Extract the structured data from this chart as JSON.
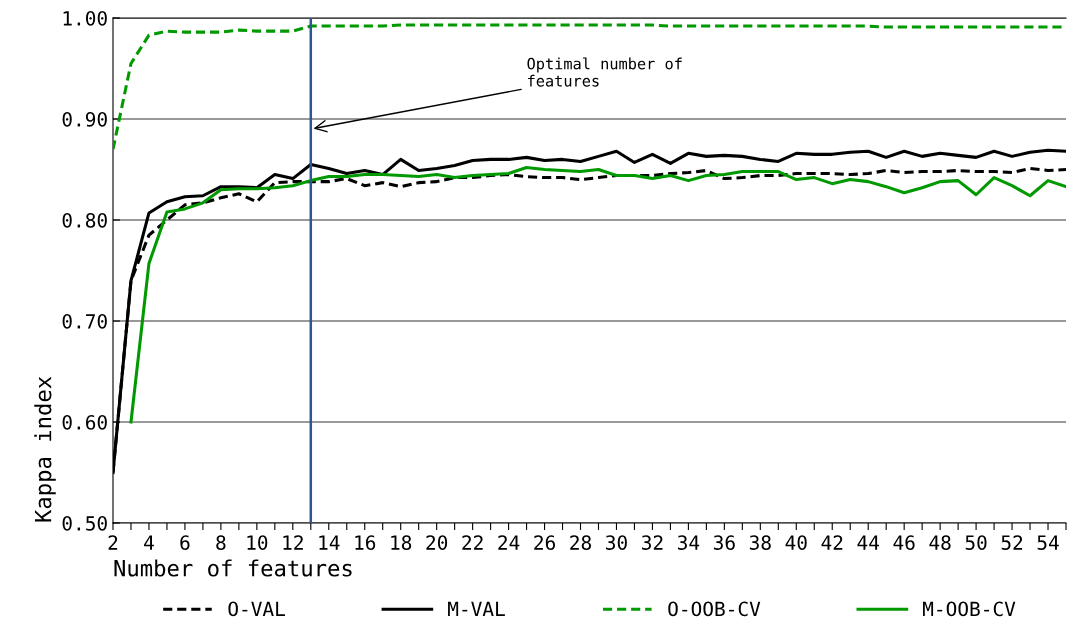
{
  "chart_data": {
    "type": "line",
    "xlabel": "Number of features",
    "ylabel": "Kappa index",
    "x": [
      2,
      3,
      4,
      5,
      6,
      7,
      8,
      9,
      10,
      11,
      12,
      13,
      14,
      15,
      16,
      17,
      18,
      19,
      20,
      21,
      22,
      23,
      24,
      25,
      26,
      27,
      28,
      29,
      30,
      31,
      32,
      33,
      34,
      35,
      36,
      37,
      38,
      39,
      40,
      41,
      42,
      43,
      44,
      45,
      46,
      47,
      48,
      49,
      50,
      51,
      52,
      53,
      54,
      55
    ],
    "series": [
      {
        "name": "O-VAL",
        "color": "#000000",
        "line_style": "dashed",
        "values": [
          0.55,
          0.74,
          0.785,
          0.8,
          0.815,
          0.817,
          0.822,
          0.826,
          0.818,
          0.837,
          0.838,
          0.838,
          0.838,
          0.841,
          0.834,
          0.837,
          0.833,
          0.837,
          0.838,
          0.842,
          0.842,
          0.844,
          0.845,
          0.843,
          0.842,
          0.842,
          0.84,
          0.842,
          0.844,
          0.844,
          0.844,
          0.846,
          0.847,
          0.849,
          0.841,
          0.842,
          0.844,
          0.844,
          0.846,
          0.846,
          0.846,
          0.845,
          0.846,
          0.849,
          0.847,
          0.848,
          0.848,
          0.849,
          0.848,
          0.848,
          0.847,
          0.851,
          0.849,
          0.85
        ]
      },
      {
        "name": "M-VAL",
        "color": "#000000",
        "line_style": "solid",
        "values": [
          0.55,
          0.74,
          0.807,
          0.818,
          0.823,
          0.824,
          0.833,
          0.833,
          0.832,
          0.845,
          0.841,
          0.855,
          0.851,
          0.846,
          0.849,
          0.845,
          0.86,
          0.849,
          0.851,
          0.854,
          0.859,
          0.86,
          0.86,
          0.862,
          0.859,
          0.86,
          0.858,
          0.863,
          0.868,
          0.857,
          0.865,
          0.856,
          0.866,
          0.863,
          0.864,
          0.863,
          0.86,
          0.858,
          0.866,
          0.865,
          0.865,
          0.867,
          0.868,
          0.862,
          0.868,
          0.863,
          0.866,
          0.864,
          0.862,
          0.868,
          0.863,
          0.867,
          0.869,
          0.868
        ]
      },
      {
        "name": "O-OOB-CV",
        "color": "#009900",
        "line_style": "dashed",
        "values": [
          0.87,
          0.955,
          0.983,
          0.987,
          0.986,
          0.986,
          0.986,
          0.988,
          0.987,
          0.987,
          0.987,
          0.992,
          0.992,
          0.992,
          0.992,
          0.992,
          0.993,
          0.993,
          0.993,
          0.993,
          0.993,
          0.993,
          0.993,
          0.993,
          0.993,
          0.993,
          0.993,
          0.993,
          0.993,
          0.993,
          0.993,
          0.992,
          0.992,
          0.992,
          0.992,
          0.992,
          0.992,
          0.992,
          0.992,
          0.992,
          0.992,
          0.992,
          0.992,
          0.991,
          0.991,
          0.991,
          0.991,
          0.991,
          0.991,
          0.991,
          0.991,
          0.991,
          0.991,
          0.991
        ]
      },
      {
        "name": "M-OOB-CV",
        "color": "#009900",
        "line_style": "solid",
        "values": [
          null,
          0.6,
          0.757,
          0.808,
          0.811,
          0.817,
          0.83,
          0.831,
          0.831,
          0.832,
          0.834,
          0.839,
          0.843,
          0.843,
          0.845,
          0.845,
          0.844,
          0.843,
          0.845,
          0.842,
          0.844,
          0.845,
          0.846,
          0.852,
          0.85,
          0.849,
          0.848,
          0.85,
          0.844,
          0.844,
          0.841,
          0.844,
          0.839,
          0.844,
          0.845,
          0.848,
          0.848,
          0.848,
          0.84,
          0.842,
          0.836,
          0.84,
          0.838,
          0.833,
          0.827,
          0.832,
          0.838,
          0.839,
          0.825,
          0.842,
          0.834,
          0.824,
          0.839,
          0.833
        ]
      }
    ],
    "xlim": [
      2,
      55
    ],
    "xticks": [
      2,
      {
        "value": 3,
        "label": null
      },
      4,
      {
        "value": 5,
        "label": null
      },
      6,
      {
        "value": 7,
        "label": null
      },
      8,
      {
        "value": 9,
        "label": null
      },
      10,
      {
        "value": 11,
        "label": null
      },
      12,
      {
        "value": 13,
        "label": null
      },
      14,
      {
        "value": 15,
        "label": null
      },
      16,
      {
        "value": 17,
        "label": null
      },
      18,
      {
        "value": 19,
        "label": null
      },
      20,
      {
        "value": 21,
        "label": null
      },
      22,
      {
        "value": 23,
        "label": null
      },
      24,
      {
        "value": 25,
        "label": null
      },
      26,
      {
        "value": 27,
        "label": null
      },
      28,
      {
        "value": 29,
        "label": null
      },
      30,
      {
        "value": 31,
        "label": null
      },
      32,
      {
        "value": 33,
        "label": null
      },
      34,
      {
        "value": 35,
        "label": null
      },
      36,
      {
        "value": 37,
        "label": null
      },
      38,
      {
        "value": 39,
        "label": null
      },
      40,
      {
        "value": 41,
        "label": null
      },
      42,
      {
        "value": 43,
        "label": null
      },
      44,
      {
        "value": 45,
        "label": null
      },
      46,
      {
        "value": 47,
        "label": null
      },
      48,
      {
        "value": 49,
        "label": null
      },
      50,
      {
        "value": 51,
        "label": null
      },
      52,
      {
        "value": 53,
        "label": null
      },
      54,
      {
        "value": 55,
        "label": null
      }
    ],
    "ylim": [
      0.5,
      1.0
    ],
    "yticks": [
      {
        "value": 0.5,
        "label": "0.50"
      },
      {
        "value": 0.6,
        "label": "0.60"
      },
      {
        "value": 0.7,
        "label": "0.70"
      },
      {
        "value": 0.8,
        "label": "0.80"
      },
      {
        "value": 0.9,
        "label": "0.90"
      },
      {
        "value": 1.0,
        "label": "1.00"
      }
    ],
    "grid": "y",
    "legend": "bottom",
    "ref_lines": [
      {
        "axis": "x",
        "value": 13,
        "color": "#2f5597"
      }
    ],
    "annotations": [
      {
        "text": "Optimal number of\nfeatures",
        "x": 13,
        "y": 0.89
      }
    ]
  }
}
